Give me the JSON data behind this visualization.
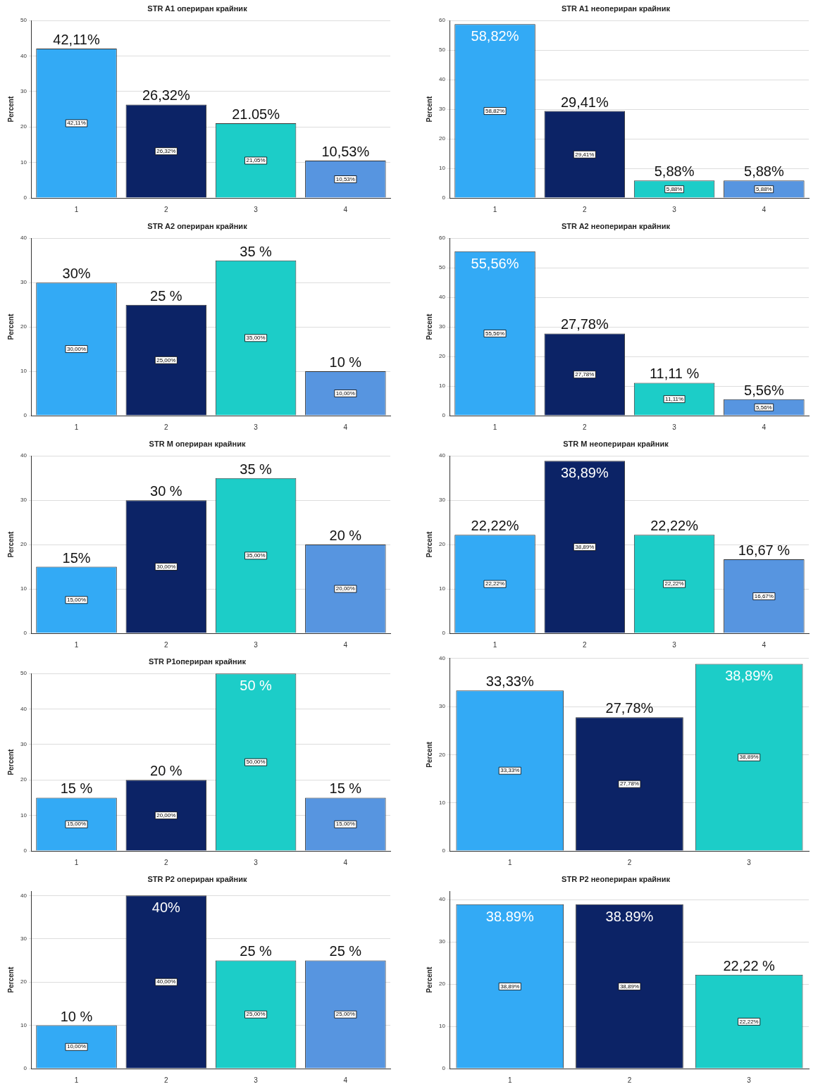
{
  "chart_data": [
    {
      "type": "bar",
      "title": "STR A1 опериран крайник",
      "ylabel": "Percent",
      "categories": [
        "1",
        "2",
        "3",
        "4"
      ],
      "values": [
        42.11,
        26.32,
        21.05,
        10.53
      ],
      "colors": [
        "#33aaf5",
        "#0c2366",
        "#1ccdc8",
        "#5795e0"
      ],
      "ylim": [
        0,
        50
      ],
      "yticks": [
        0,
        10,
        20,
        30,
        40,
        50
      ],
      "grid": "y",
      "value_labels": [
        "42,11%",
        "26,32%",
        "21.05%",
        "10,53%"
      ],
      "annotations": [
        {
          "text": "42,11%",
          "x": "1",
          "y": 21.05
        },
        {
          "text": "26,32%",
          "x": "2",
          "y": 13.16
        },
        {
          "text": "21,05%",
          "x": "3",
          "y": 10.53
        },
        {
          "text": "10,53%",
          "x": "4",
          "y": 5.26
        }
      ]
    },
    {
      "type": "bar",
      "title": "STR A1 неопериран крайник",
      "ylabel": "Percent",
      "categories": [
        "1",
        "2",
        "3",
        "4"
      ],
      "values": [
        58.82,
        29.41,
        5.88,
        5.88
      ],
      "colors": [
        "#33aaf5",
        "#0c2366",
        "#1ccdc8",
        "#5795e0"
      ],
      "ylim": [
        0,
        60
      ],
      "yticks": [
        0,
        10,
        20,
        30,
        40,
        50,
        60
      ],
      "grid": "y",
      "value_labels": [
        "58,82%",
        "29,41%",
        "5,88%",
        "5,88%"
      ],
      "annotations": [
        {
          "text": "58,82%",
          "x": "1",
          "y": 29.41
        },
        {
          "text": "29,41%",
          "x": "2",
          "y": 14.7
        },
        {
          "text": "5,88%",
          "x": "3",
          "y": 2.94
        },
        {
          "text": "5,88%",
          "x": "4",
          "y": 2.94
        }
      ]
    },
    {
      "type": "bar",
      "title": "STR A2 опериран крайник",
      "ylabel": "Percent",
      "categories": [
        "1",
        "2",
        "3",
        "4"
      ],
      "values": [
        30,
        25,
        35,
        10
      ],
      "colors": [
        "#33aaf5",
        "#0c2366",
        "#1ccdc8",
        "#5795e0"
      ],
      "ylim": [
        0,
        40
      ],
      "yticks": [
        0,
        10,
        20,
        30,
        40
      ],
      "grid": "y",
      "value_labels": [
        "30%",
        "25 %",
        "35 %",
        "10 %"
      ],
      "annotations": [
        {
          "text": "30,00%",
          "x": "1",
          "y": 15
        },
        {
          "text": "25,00%",
          "x": "2",
          "y": 12.5
        },
        {
          "text": "35,00%",
          "x": "3",
          "y": 17.5
        },
        {
          "text": "10,00%",
          "x": "4",
          "y": 5
        }
      ]
    },
    {
      "type": "bar",
      "title": "STR A2 неопериран крайник",
      "ylabel": "Percent",
      "categories": [
        "1",
        "2",
        "3",
        "4"
      ],
      "values": [
        55.56,
        27.78,
        11.11,
        5.56
      ],
      "colors": [
        "#33aaf5",
        "#0c2366",
        "#1ccdc8",
        "#5795e0"
      ],
      "ylim": [
        0,
        60
      ],
      "yticks": [
        0,
        10,
        20,
        30,
        40,
        50,
        60
      ],
      "grid": "y",
      "value_labels": [
        "55,56%",
        "27,78%",
        "11,11 %",
        "5,56%"
      ],
      "annotations": [
        {
          "text": "55,56%",
          "x": "1",
          "y": 27.78
        },
        {
          "text": "27,78%",
          "x": "2",
          "y": 13.89
        },
        {
          "text": "11,11%",
          "x": "3",
          "y": 5.56
        },
        {
          "text": "5,56%",
          "x": "4",
          "y": 2.78
        }
      ]
    },
    {
      "type": "bar",
      "title": "STR M опериран крайник",
      "ylabel": "Percent",
      "categories": [
        "1",
        "2",
        "3",
        "4"
      ],
      "values": [
        15,
        30,
        35,
        20
      ],
      "colors": [
        "#33aaf5",
        "#0c2366",
        "#1ccdc8",
        "#5795e0"
      ],
      "ylim": [
        0,
        40
      ],
      "yticks": [
        0,
        10,
        20,
        30,
        40
      ],
      "grid": "y",
      "value_labels": [
        "15%",
        "30 %",
        "35 %",
        "20 %"
      ],
      "annotations": [
        {
          "text": "15,00%",
          "x": "1",
          "y": 7.5
        },
        {
          "text": "30,00%",
          "x": "2",
          "y": 15
        },
        {
          "text": "35,00%",
          "x": "3",
          "y": 17.5
        },
        {
          "text": "20,00%",
          "x": "4",
          "y": 10
        }
      ]
    },
    {
      "type": "bar",
      "title": "STR M неопериран крайник",
      "ylabel": "Percent",
      "categories": [
        "1",
        "2",
        "3",
        "4"
      ],
      "values": [
        22.22,
        38.89,
        22.22,
        16.67
      ],
      "colors": [
        "#33aaf5",
        "#0c2366",
        "#1ccdc8",
        "#5795e0"
      ],
      "ylim": [
        0,
        40
      ],
      "yticks": [
        0,
        10,
        20,
        30,
        40
      ],
      "grid": "y",
      "value_labels": [
        "22,22%",
        "38,89%",
        "22,22%",
        "16,67 %"
      ],
      "annotations": [
        {
          "text": "22,22%",
          "x": "1",
          "y": 11.11
        },
        {
          "text": "38,89%",
          "x": "2",
          "y": 19.44
        },
        {
          "text": "22,22%",
          "x": "3",
          "y": 11.11
        },
        {
          "text": "16,67%",
          "x": "4",
          "y": 8.33
        }
      ]
    },
    {
      "type": "bar",
      "title": "STR P1опериран крайник",
      "ylabel": "Percent",
      "categories": [
        "1",
        "2",
        "3",
        "4"
      ],
      "values": [
        15,
        20,
        50,
        15
      ],
      "colors": [
        "#33aaf5",
        "#0c2366",
        "#1ccdc8",
        "#5795e0"
      ],
      "ylim": [
        0,
        50
      ],
      "yticks": [
        0,
        10,
        20,
        30,
        40,
        50
      ],
      "grid": "y",
      "value_labels": [
        "15 %",
        "20 %",
        "50 %",
        "15 %"
      ],
      "annotations": [
        {
          "text": "15,00%",
          "x": "1",
          "y": 7.5
        },
        {
          "text": "20,00%",
          "x": "2",
          "y": 10
        },
        {
          "text": "50,00%",
          "x": "3",
          "y": 25
        },
        {
          "text": "15,00%",
          "x": "4",
          "y": 7.5
        }
      ]
    },
    {
      "type": "bar",
      "ylabel": "Percent",
      "categories": [
        "1",
        "2",
        "3"
      ],
      "values": [
        33.33,
        27.78,
        38.89
      ],
      "colors": [
        "#33aaf5",
        "#0c2366",
        "#1ccdc8"
      ],
      "ylim": [
        0,
        40
      ],
      "yticks": [
        0,
        10,
        20,
        30,
        40
      ],
      "grid": "y",
      "value_labels": [
        "33,33%",
        "27,78%",
        "38,89%"
      ],
      "annotations": [
        {
          "text": "33,33%",
          "x": "1",
          "y": 16.67
        },
        {
          "text": "27,78%",
          "x": "2",
          "y": 13.89
        },
        {
          "text": "38,89%",
          "x": "3",
          "y": 19.44
        }
      ]
    },
    {
      "type": "bar",
      "title": "STR P2 опериран крайник",
      "ylabel": "Percent",
      "categories": [
        "1",
        "2",
        "3",
        "4"
      ],
      "values": [
        10,
        40,
        25,
        25
      ],
      "colors": [
        "#33aaf5",
        "#0c2366",
        "#1ccdc8",
        "#5795e0"
      ],
      "ylim": [
        0,
        41
      ],
      "yticks": [
        0,
        10,
        20,
        30,
        40
      ],
      "grid": "y",
      "value_labels": [
        "10 %",
        "40%",
        "25 %",
        "25 %"
      ],
      "annotations": [
        {
          "text": "10,00%",
          "x": "1",
          "y": 5
        },
        {
          "text": "40,00%",
          "x": "2",
          "y": 20
        },
        {
          "text": "25,00%",
          "x": "3",
          "y": 12.5
        },
        {
          "text": "25,00%",
          "x": "4",
          "y": 12.5
        }
      ]
    },
    {
      "type": "bar",
      "title": "STR P2 неопериран крайник",
      "ylabel": "Percent",
      "categories": [
        "1",
        "2",
        "3"
      ],
      "values": [
        38.89,
        38.89,
        22.22
      ],
      "colors": [
        "#33aaf5",
        "#0c2366",
        "#1ccdc8"
      ],
      "ylim": [
        0,
        42
      ],
      "yticks": [
        0,
        10,
        20,
        30,
        40
      ],
      "grid": "y",
      "value_labels": [
        "38.89%",
        "38.89%",
        "22,22 %"
      ],
      "annotations": [
        {
          "text": "38,89%",
          "x": "1",
          "y": 19.44
        },
        {
          "text": "38,89%",
          "x": "2",
          "y": 19.44
        },
        {
          "text": "22,22%",
          "x": "3",
          "y": 11.11
        }
      ]
    }
  ]
}
